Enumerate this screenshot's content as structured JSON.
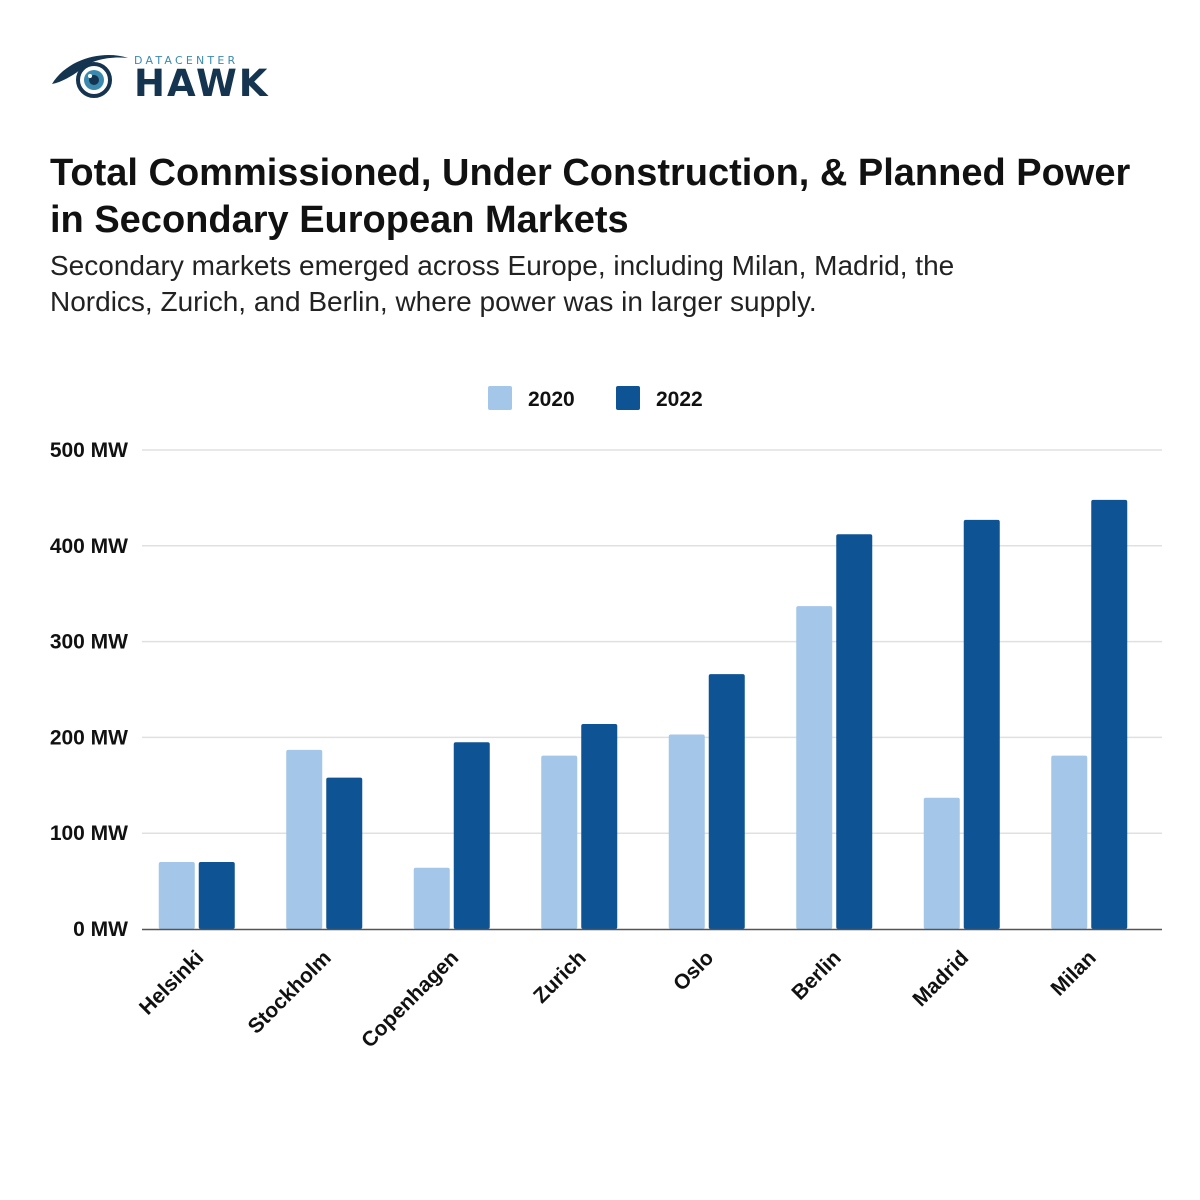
{
  "brand": {
    "top": "DATACENTER",
    "main": "HAWK"
  },
  "header": {
    "title": "Total Commissioned, Under Construction, & Planned Power in Secondary European Markets",
    "subtitle": "Secondary markets emerged across Europe, including Milan, Madrid, the Nordics, Zurich, and Berlin, where power was in larger supply."
  },
  "chart_data": {
    "type": "bar",
    "categories": [
      "Helsinki",
      "Stockholm",
      "Copenhagen",
      "Zurich",
      "Oslo",
      "Berlin",
      "Madrid",
      "Milan"
    ],
    "series": [
      {
        "name": "2020",
        "color": "#a3c6e9",
        "values": [
          70,
          187,
          64,
          181,
          203,
          337,
          137,
          181
        ]
      },
      {
        "name": "2022",
        "color": "#0e5394",
        "values": [
          70,
          158,
          195,
          214,
          266,
          412,
          427,
          448
        ]
      }
    ],
    "yticks": [
      "0 MW",
      "100 MW",
      "200 MW",
      "300 MW",
      "400 MW",
      "500 MW"
    ],
    "ylim": [
      0,
      500
    ],
    "grid": true,
    "legend_position": "top-center"
  }
}
